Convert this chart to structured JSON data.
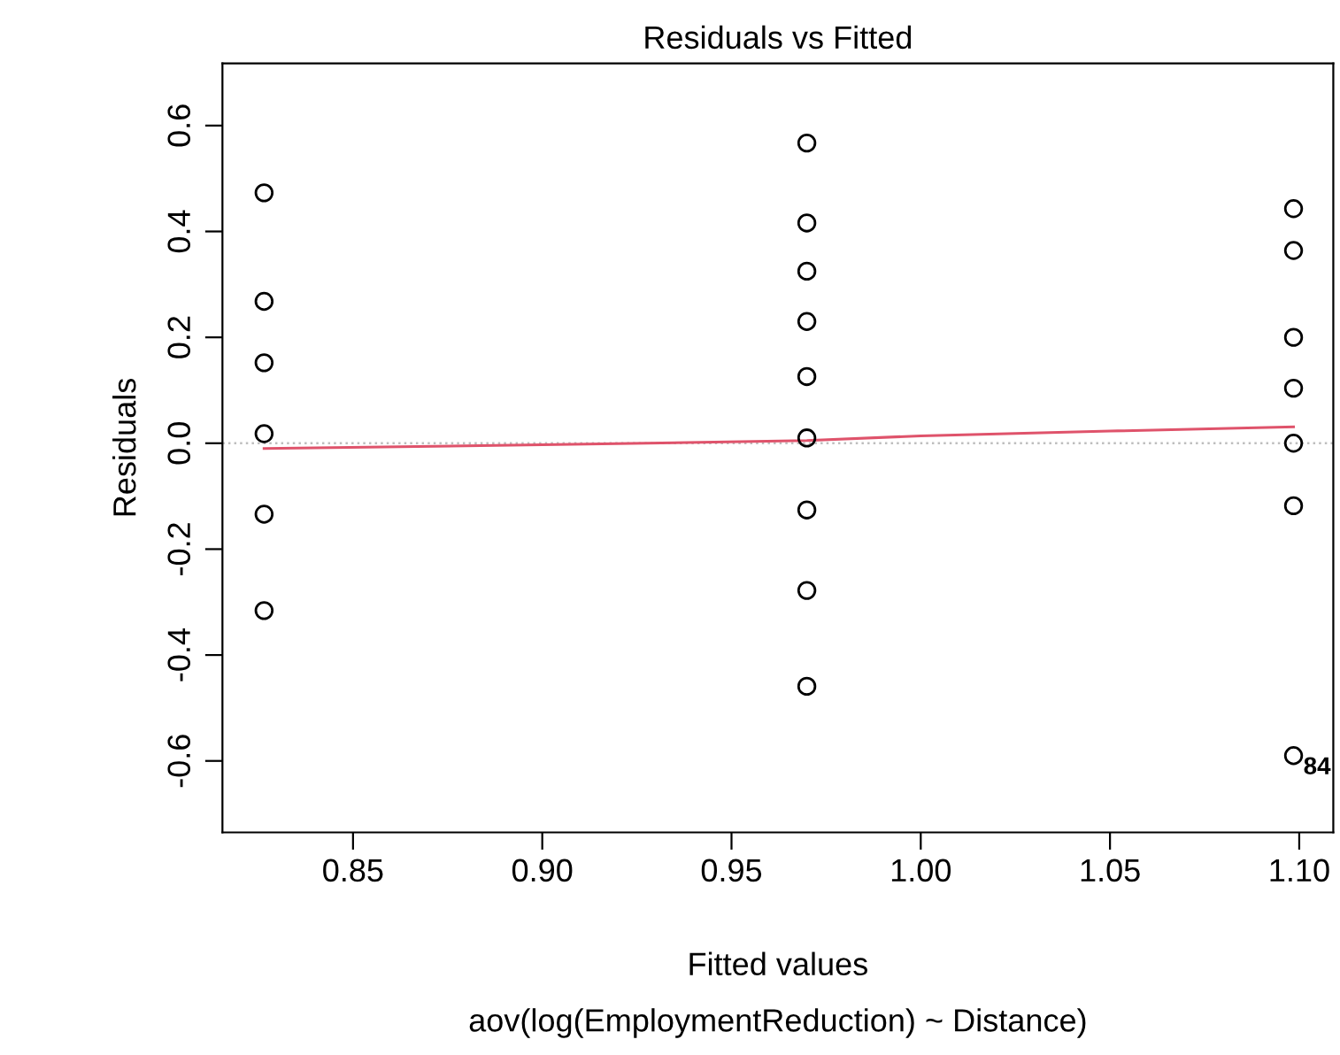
{
  "chart_data": {
    "type": "scatter",
    "title": "Residuals vs Fitted",
    "xlabel": "Fitted values",
    "subtitle": "aov(log(EmploymentReduction) ~ Distance)",
    "ylabel": "Residuals",
    "series": [
      {
        "color": "#000000",
        "marker": "circle",
        "x": [
          0.8265,
          0.8265,
          0.8265,
          0.8265,
          0.8265,
          0.8265,
          0.9699,
          0.9699,
          0.9699,
          0.9699,
          0.9699,
          0.9699,
          0.9699,
          0.9699,
          0.9699,
          1.0985,
          1.0985,
          1.0985,
          1.0985,
          1.0985,
          1.0985,
          1.0985
        ],
        "values": [
          0.473,
          0.268,
          0.152,
          0.018,
          -0.134,
          -0.316,
          0.567,
          0.416,
          0.325,
          0.23,
          0.126,
          0.01,
          -0.126,
          -0.278,
          -0.459,
          0.443,
          0.364,
          0.2,
          0.104,
          0.0,
          -0.118,
          -0.59
        ]
      },
      {
        "type": "line",
        "color": "#df536b",
        "marker": "none",
        "x": [
          0.8265,
          0.9,
          0.9699,
          1.0,
          1.05,
          1.0985
        ],
        "values": [
          -0.01,
          -0.003,
          0.005,
          0.014,
          0.023,
          0.031
        ]
      }
    ],
    "annotations": [
      {
        "text": "84",
        "x": 1.0985,
        "y": -0.59
      }
    ],
    "ref_lines": [
      {
        "axis": "y",
        "value": 0,
        "color": "#bebebe",
        "line_style": "dotted"
      }
    ],
    "xlim": [
      0.8155,
      1.109
    ],
    "ylim": [
      -0.735,
      0.7176
    ],
    "xticks": [
      0.85,
      {
        "value": 0.9,
        "label": "0.90"
      },
      0.95,
      {
        "value": 1,
        "label": "1.00"
      },
      1.05,
      {
        "value": 1.1,
        "label": "1.10"
      }
    ],
    "yticks": [
      -0.6,
      -0.4,
      -0.2,
      {
        "value": 0,
        "label": "0.0"
      },
      0.2,
      0.4,
      0.6
    ],
    "grid": false,
    "legend": false
  }
}
